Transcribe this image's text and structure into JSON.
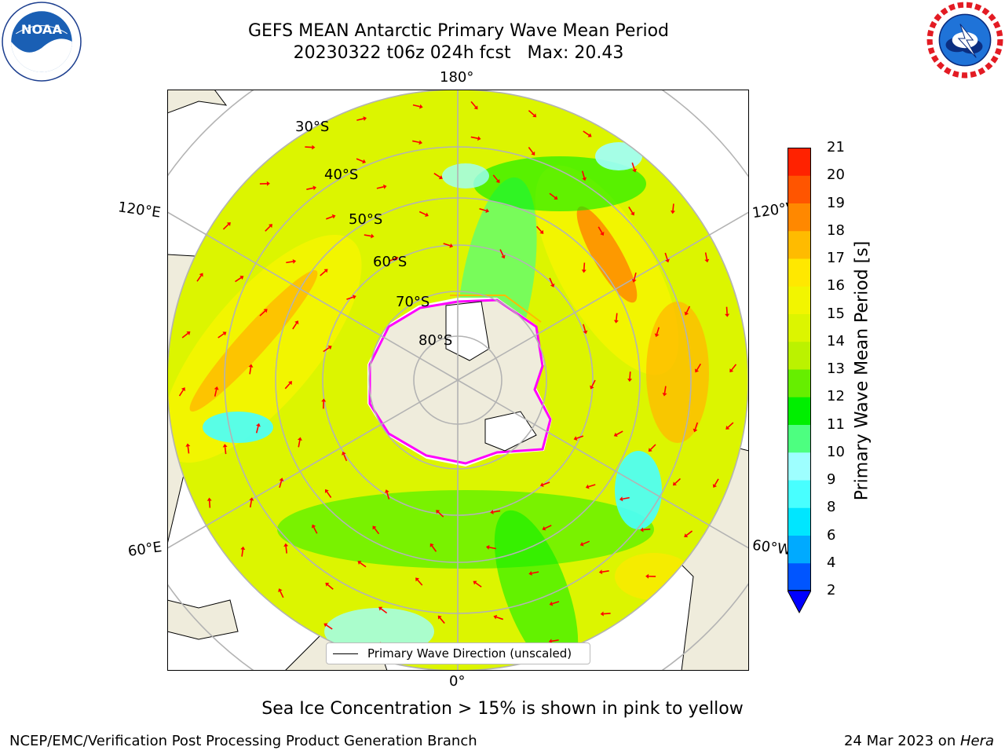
{
  "header": {
    "title": "GEFS MEAN Antarctic Primary Wave Mean Period",
    "subtitle": "20230322 t06z 024h fcst   Max: 20.43"
  },
  "logos": {
    "left": "NOAA",
    "right": "NATIONAL WEATHER SERVICE"
  },
  "map": {
    "projection": "south polar stereographic",
    "longitude_labels": {
      "top": "180°",
      "upper_left": "120°E",
      "upper_right": "120°W",
      "lower_left": "60°E",
      "lower_right": "60°W",
      "bottom": "0°"
    },
    "latitude_labels": [
      "30°S",
      "40°S",
      "50°S",
      "60°S",
      "70°S",
      "80°S"
    ],
    "legend_label": "Primary Wave Direction (unscaled)",
    "colors": {
      "land": "#efecdc",
      "arrows": "#ff0000",
      "grid": "#b3b3b3",
      "ice_edge": "#ff00ff"
    }
  },
  "colorbar": {
    "label": "Primary Wave Mean Period [s]",
    "ticks": [
      "2",
      "4",
      "6",
      "8",
      "9",
      "10",
      "11",
      "12",
      "13",
      "14",
      "15",
      "16",
      "17",
      "18",
      "19",
      "20",
      "21"
    ],
    "colors": [
      "#0055ff",
      "#00aaff",
      "#00e6ff",
      "#48ffff",
      "#9effff",
      "#4dff80",
      "#00ef00",
      "#66ee00",
      "#bbf200",
      "#dcf500",
      "#f2f500",
      "#ffe800",
      "#ffbb00",
      "#ff8800",
      "#ff5500",
      "#ff2200"
    ],
    "extend_color": "#0000ff"
  },
  "footnote": "Sea Ice Concentration > 15% is shown in pink to yellow",
  "credits": {
    "left": "NCEP/EMC/Verification Post Processing Product Generation Branch",
    "right_date": "24 Mar 2023 on ",
    "right_system": "Hera"
  }
}
